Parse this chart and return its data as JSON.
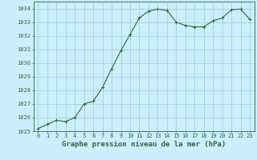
{
  "x": [
    0,
    1,
    2,
    3,
    4,
    5,
    6,
    7,
    8,
    9,
    10,
    11,
    12,
    13,
    14,
    15,
    16,
    17,
    18,
    19,
    20,
    21,
    22,
    23
  ],
  "y": [
    1025.2,
    1025.5,
    1025.8,
    1025.7,
    1026.0,
    1027.0,
    1027.2,
    1028.2,
    1029.6,
    1030.9,
    1032.1,
    1033.3,
    1033.8,
    1033.95,
    1033.85,
    1033.0,
    1032.75,
    1032.65,
    1032.65,
    1033.1,
    1033.3,
    1033.9,
    1033.95,
    1033.2
  ],
  "line_color": "#2d6a2d",
  "marker": "+",
  "marker_size": 3,
  "bg_color": "#cceeff",
  "grid_color": "#99cccc",
  "axis_color": "#2d6a2d",
  "tick_label_color": "#2d6a2d",
  "xlabel": "Graphe pression niveau de la mer (hPa)",
  "xlabel_color": "#2d6a2d",
  "xlabel_fontsize": 6.5,
  "ylim": [
    1025,
    1034.5
  ],
  "xlim_min": -0.5,
  "xlim_max": 23.5,
  "yticks": [
    1025,
    1026,
    1027,
    1028,
    1029,
    1030,
    1031,
    1032,
    1033,
    1034
  ],
  "xticks": [
    0,
    1,
    2,
    3,
    4,
    5,
    6,
    7,
    8,
    9,
    10,
    11,
    12,
    13,
    14,
    15,
    16,
    17,
    18,
    19,
    20,
    21,
    22,
    23
  ],
  "tick_fontsize": 5.0,
  "linewidth": 0.8,
  "marker_edge_width": 0.7
}
